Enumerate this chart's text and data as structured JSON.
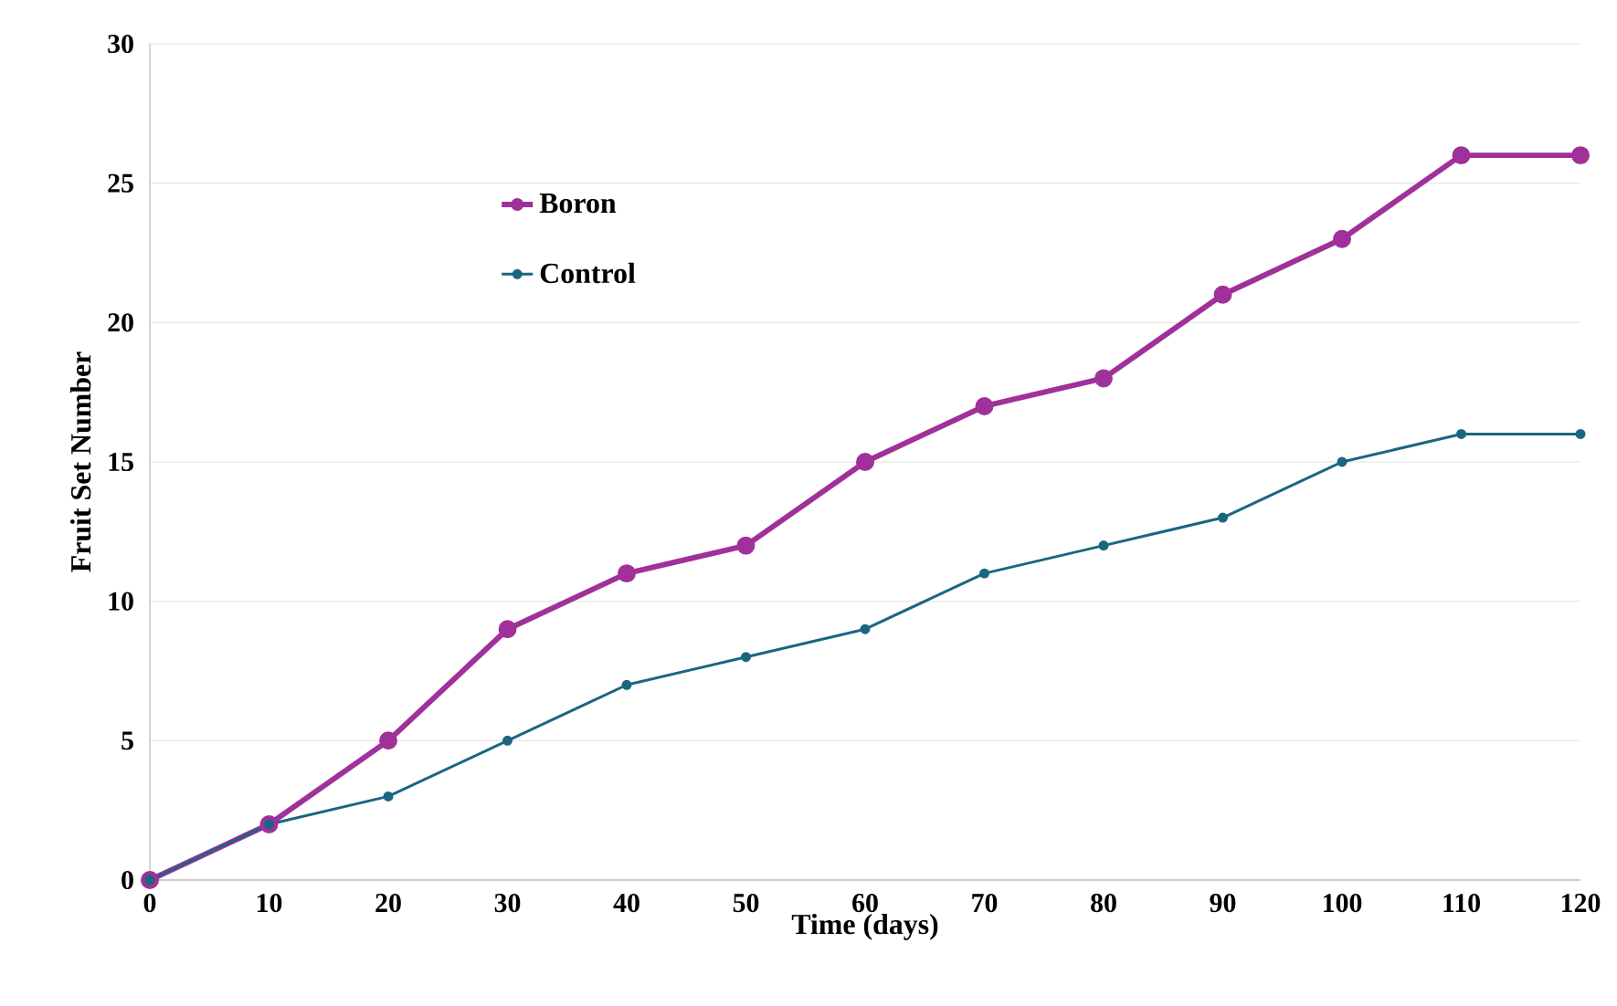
{
  "chart_data": {
    "type": "line",
    "xlabel": "Time (days)",
    "ylabel": "Fruit Set Number",
    "x": [
      0,
      10,
      20,
      30,
      40,
      50,
      60,
      70,
      80,
      90,
      100,
      110,
      120
    ],
    "series": [
      {
        "name": "Boron",
        "color": "#a0309a",
        "values": [
          0,
          2,
          5,
          9,
          11,
          12,
          15,
          17,
          18,
          21,
          23,
          26,
          26
        ]
      },
      {
        "name": "Control",
        "color": "#1a6680",
        "values": [
          0,
          2,
          3,
          5,
          7,
          8,
          9,
          11,
          12,
          13,
          15,
          16,
          16
        ]
      }
    ],
    "xlim": [
      0,
      120
    ],
    "ylim": [
      0,
      30
    ],
    "xticks": [
      0,
      10,
      20,
      30,
      40,
      50,
      60,
      70,
      80,
      90,
      100,
      110,
      120
    ],
    "yticks": [
      0,
      5,
      10,
      15,
      20,
      25,
      30
    ],
    "grid": "y",
    "legend": "top left",
    "marker": "circle",
    "line_style": "solid"
  }
}
